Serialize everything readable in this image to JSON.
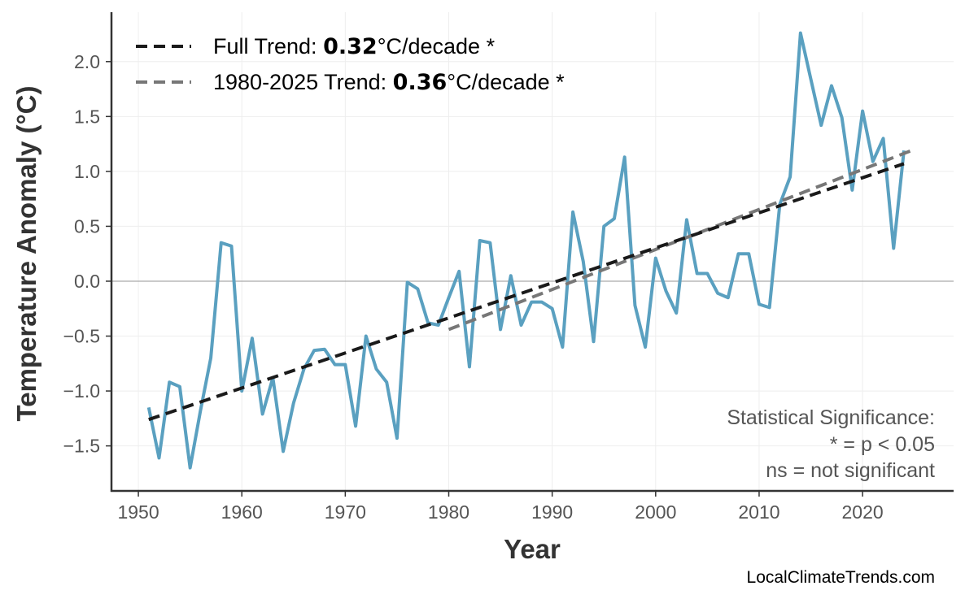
{
  "chart_data": {
    "type": "line",
    "xlabel": "Year",
    "ylabel": "Temperature Anomaly (°C)",
    "xlim": [
      1947.4,
      2028.8
    ],
    "ylim": [
      -1.91,
      2.45
    ],
    "xticks": [
      1950,
      1960,
      1970,
      1980,
      1990,
      2000,
      2010,
      2020
    ],
    "yticks": [
      "−1.5",
      "−1.0",
      "−0.5",
      "0.0",
      "0.5",
      "1.0",
      "1.5",
      "2.0"
    ],
    "ytick_values": [
      -1.5,
      -1.0,
      -0.5,
      0.0,
      0.5,
      1.0,
      1.5,
      2.0
    ],
    "grid": true,
    "colors": {
      "series": "#5aa0c0",
      "full_trend": "#1a1a1a",
      "recent_trend": "#777777"
    },
    "x": [
      1951,
      1952,
      1953,
      1954,
      1955,
      1956,
      1957,
      1958,
      1959,
      1960,
      1961,
      1962,
      1963,
      1964,
      1965,
      1966,
      1967,
      1968,
      1969,
      1970,
      1971,
      1972,
      1973,
      1974,
      1975,
      1976,
      1977,
      1978,
      1979,
      1980,
      1981,
      1982,
      1983,
      1984,
      1985,
      1986,
      1987,
      1988,
      1989,
      1990,
      1991,
      1992,
      1993,
      1994,
      1995,
      1996,
      1997,
      1998,
      1999,
      2000,
      2001,
      2002,
      2003,
      2004,
      2005,
      2006,
      2007,
      2008,
      2009,
      2010,
      2011,
      2012,
      2013,
      2014,
      2015,
      2016,
      2017,
      2018,
      2019,
      2020,
      2021,
      2022,
      2023,
      2024
    ],
    "values": [
      -1.15,
      -1.61,
      -0.92,
      -0.96,
      -1.7,
      -1.18,
      -0.7,
      0.35,
      0.32,
      -1.0,
      -0.52,
      -1.21,
      -0.88,
      -1.55,
      -1.11,
      -0.8,
      -0.63,
      -0.62,
      -0.76,
      -0.76,
      -1.32,
      -0.5,
      -0.8,
      -0.92,
      -1.43,
      -0.01,
      -0.07,
      -0.38,
      -0.4,
      -0.15,
      0.09,
      -0.78,
      0.37,
      0.35,
      -0.44,
      0.05,
      -0.4,
      -0.19,
      -0.19,
      -0.25,
      -0.6,
      0.63,
      0.18,
      -0.55,
      0.5,
      0.57,
      1.13,
      -0.22,
      -0.6,
      0.21,
      -0.09,
      -0.29,
      0.56,
      0.07,
      0.07,
      -0.11,
      -0.15,
      0.25,
      0.25,
      -0.21,
      -0.24,
      0.7,
      0.95,
      2.26,
      1.84,
      1.42,
      1.78,
      1.49,
      0.83,
      1.55,
      1.09,
      1.3,
      0.3,
      1.19
    ],
    "trends": [
      {
        "label_prefix": "Full Trend: ",
        "rate": "0.32",
        "label_suffix": "°C/decade *",
        "x": [
          1951,
          2024
        ],
        "y": [
          -1.26,
          1.07
        ]
      },
      {
        "label_prefix": "1980-2025 Trend: ",
        "rate": "0.36",
        "label_suffix": "°C/decade *",
        "x": [
          1980,
          2025
        ],
        "y": [
          -0.44,
          1.2
        ]
      }
    ],
    "legend_position": "top-left",
    "annotation": [
      "Statistical Significance:",
      "* = p < 0.05",
      "ns = not significant"
    ]
  },
  "credit": "LocalClimateTrends.com"
}
